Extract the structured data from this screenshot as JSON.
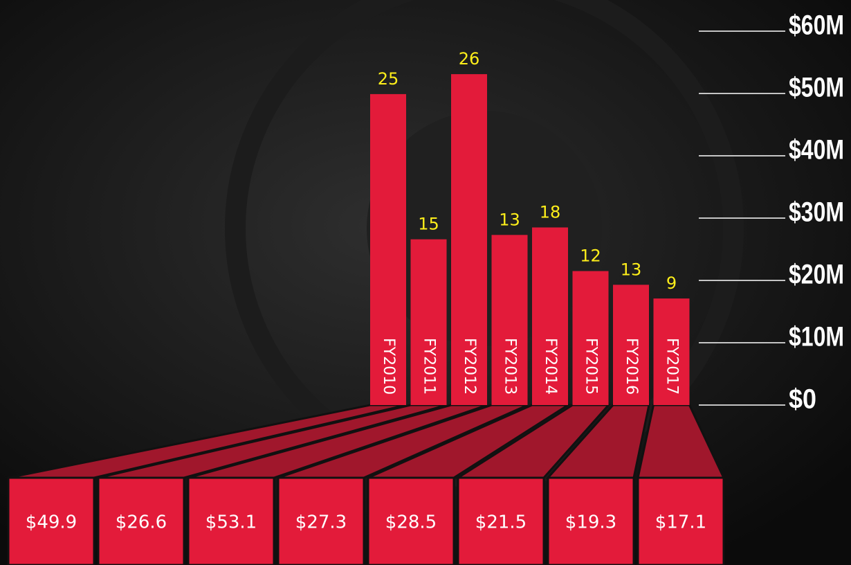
{
  "chart_data": {
    "type": "bar",
    "categories": [
      "FY2010",
      "FY2011",
      "FY2012",
      "FY2013",
      "FY2014",
      "FY2015",
      "FY2016",
      "FY2017"
    ],
    "values": [
      49.9,
      26.6,
      53.1,
      27.3,
      28.5,
      21.5,
      19.3,
      17.1
    ],
    "value_labels": [
      "$49.9",
      "$26.6",
      "$53.1",
      "$27.3",
      "$28.5",
      "$21.5",
      "$19.3",
      "$17.1"
    ],
    "counts": [
      25,
      15,
      26,
      13,
      18,
      12,
      13,
      9
    ],
    "color": "#e31b3a",
    "ylim": [
      0,
      60
    ],
    "yticks": [
      {
        "value": 0,
        "label": "$0"
      },
      {
        "value": 10,
        "label": "$10M"
      },
      {
        "value": 20,
        "label": "$20M"
      },
      {
        "value": 30,
        "label": "$30M"
      },
      {
        "value": 40,
        "label": "$40M"
      },
      {
        "value": 50,
        "label": "$50M"
      },
      {
        "value": 60,
        "label": "$60M"
      }
    ],
    "grid": true
  }
}
